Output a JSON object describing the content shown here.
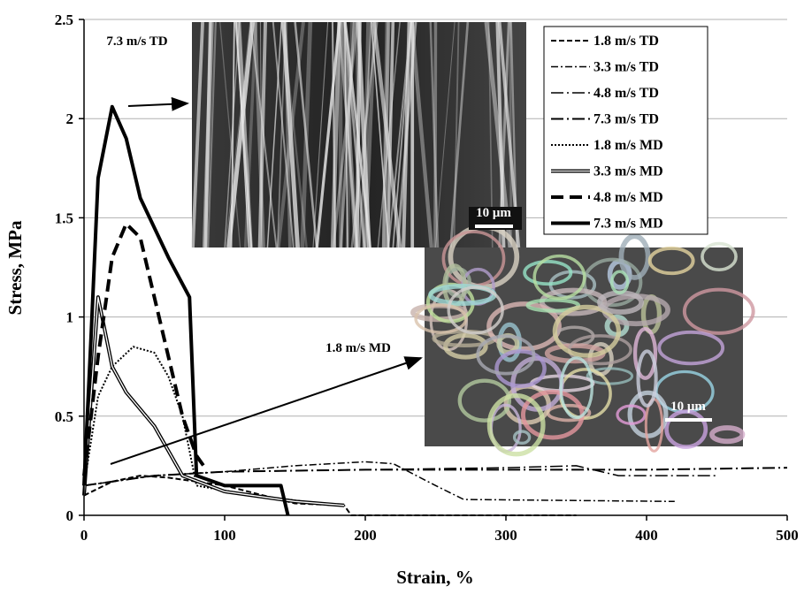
{
  "chart_data": {
    "type": "line",
    "x_label": "Strain, %",
    "y_label": "Stress, MPa",
    "xlim": [
      0,
      500
    ],
    "xticks": [
      0,
      100,
      200,
      300,
      400,
      500
    ],
    "ylim": [
      0,
      2.5
    ],
    "yticks": [
      0,
      0.5,
      1,
      1.5,
      2,
      2.5
    ],
    "grid": true,
    "legend": "top right",
    "annotations": [
      "7.3 m/s TD",
      "1.8 m/s MD"
    ],
    "scale_bar_labels": [
      "10 μm",
      "10 μm"
    ],
    "series": [
      {
        "name": "1.8 m/s TD",
        "color": "#000000",
        "line_style": "dashed",
        "line_width": 2,
        "x": [
          0,
          20,
          40,
          60,
          100,
          150,
          185,
          190,
          350
        ],
        "values": [
          0.1,
          0.17,
          0.2,
          0.19,
          0.15,
          0.06,
          0.05,
          0,
          0
        ]
      },
      {
        "name": "3.3 m/s TD",
        "color": "#000000",
        "line_style": "dash-dot",
        "line_width": 1.5,
        "x": [
          0,
          50,
          100,
          150,
          200,
          220,
          250,
          270,
          420
        ],
        "values": [
          0.15,
          0.2,
          0.22,
          0.25,
          0.27,
          0.26,
          0.15,
          0.08,
          0.07
        ]
      },
      {
        "name": "4.8 m/s TD",
        "color": "#000000",
        "line_style": "long-dash-dot",
        "line_width": 1.5,
        "x": [
          0,
          50,
          100,
          200,
          300,
          350,
          380,
          450
        ],
        "values": [
          0.15,
          0.2,
          0.22,
          0.23,
          0.24,
          0.25,
          0.2,
          0.2
        ]
      },
      {
        "name": "7.3 m/s TD",
        "color": "#000000",
        "line_style": "long-dash-dot",
        "line_width": 2,
        "x": [
          0,
          50,
          100,
          200,
          300,
          400,
          500
        ],
        "values": [
          0.15,
          0.2,
          0.22,
          0.23,
          0.23,
          0.23,
          0.24
        ]
      },
      {
        "name": "1.8 m/s MD",
        "color": "#000000",
        "line_style": "dotted",
        "line_width": 2,
        "x": [
          0,
          10,
          20,
          35,
          50,
          60,
          70,
          80,
          120,
          180
        ],
        "values": [
          0.15,
          0.6,
          0.75,
          0.85,
          0.82,
          0.7,
          0.5,
          0.15,
          0.1,
          0.05
        ]
      },
      {
        "name": "3.3 m/s MD",
        "color": "#000000",
        "line_style": "double",
        "line_width": 4,
        "x": [
          0,
          10,
          20,
          30,
          50,
          70,
          100,
          150,
          185
        ],
        "values": [
          0.1,
          1.1,
          0.75,
          0.62,
          0.45,
          0.2,
          0.12,
          0.07,
          0.05
        ]
      },
      {
        "name": "4.8 m/s MD",
        "color": "#000000",
        "line_style": "thick-dashed",
        "line_width": 4,
        "x": [
          0,
          10,
          20,
          30,
          40,
          50,
          60,
          70,
          80,
          85
        ],
        "values": [
          0.2,
          0.8,
          1.3,
          1.47,
          1.4,
          1.1,
          0.8,
          0.5,
          0.3,
          0.25
        ]
      },
      {
        "name": "7.3 m/s MD",
        "color": "#000000",
        "line_style": "solid",
        "line_width": 4,
        "x": [
          0,
          5,
          10,
          20,
          30,
          40,
          60,
          75,
          80,
          100,
          140,
          145
        ],
        "values": [
          0.15,
          0.9,
          1.7,
          2.06,
          1.9,
          1.6,
          1.3,
          1.1,
          0.2,
          0.15,
          0.15,
          0
        ]
      }
    ]
  }
}
